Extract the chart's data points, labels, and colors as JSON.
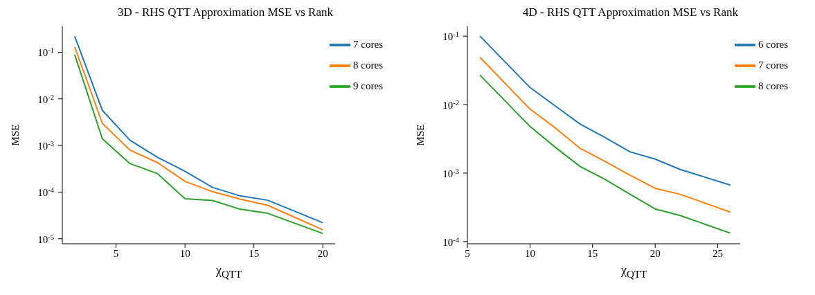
{
  "chart_data": [
    {
      "type": "line",
      "title": "3D - RHS QTT Approximation MSE vs Rank",
      "xlabel": "χ$_{QTT}$",
      "ylabel": "MSE",
      "log": "y",
      "grid": false,
      "legend": "top right",
      "x": [
        2,
        4,
        6,
        8,
        10,
        12,
        14,
        16,
        20
      ],
      "series": [
        {
          "name": "7 cores",
          "color": "#1f77b4",
          "values": [
            0.22,
            0.0057,
            0.0013,
            0.00056,
            0.00028,
            0.000126,
            8.3e-05,
            6.7e-05,
            2.2e-05
          ]
        },
        {
          "name": "8 cores",
          "color": "#ff7f0e",
          "values": [
            0.13,
            0.003,
            0.0008,
            0.00043,
            0.00017,
            0.000102,
            7.1e-05,
            5.2e-05,
            1.55e-05
          ]
        },
        {
          "name": "9 cores",
          "color": "#2ca02c",
          "values": [
            0.089,
            0.0014,
            0.00041,
            0.00025,
            7.2e-05,
            6.6e-05,
            4.3e-05,
            3.5e-05,
            1.3e-05
          ]
        }
      ],
      "xlim": [
        1.1,
        20.9
      ],
      "xticks": [
        5,
        10,
        15,
        20
      ],
      "ylim": [
        7.8e-06,
        0.36
      ],
      "yticks": [
        {
          "value": 0.1,
          "label": "10$^{-1}$"
        },
        {
          "value": 0.01,
          "label": "10$^{-2}$"
        },
        {
          "value": 0.001,
          "label": "10$^{-3}$"
        },
        {
          "value": 0.0001,
          "label": "10$^{-4}$"
        },
        {
          "value": 1e-05,
          "label": "10$^{-5}$"
        }
      ]
    },
    {
      "type": "line",
      "title": "4D - RHS QTT Approximation MSE vs Rank",
      "xlabel": "χ$_{QTT}$",
      "ylabel": "MSE",
      "log": "y",
      "grid": false,
      "legend": "top right",
      "x": [
        6,
        10,
        12,
        14,
        16,
        18,
        20,
        22,
        26
      ],
      "series": [
        {
          "name": "6 cores",
          "color": "#1f77b4",
          "values": [
            0.1,
            0.0178,
            0.0096,
            0.0052,
            0.0033,
            0.00204,
            0.0016,
            0.00113,
            0.00067
          ]
        },
        {
          "name": "7 cores",
          "color": "#ff7f0e",
          "values": [
            0.049,
            0.0086,
            0.0046,
            0.0023,
            0.00148,
            0.00093,
            0.0006,
            0.00049,
            0.00027
          ]
        },
        {
          "name": "8 cores",
          "color": "#2ca02c",
          "values": [
            0.027,
            0.0048,
            0.0024,
            0.00125,
            0.00081,
            0.00049,
            0.0003,
            0.00024,
            0.000133
          ]
        }
      ],
      "xlim": [
        5,
        26.8
      ],
      "xticks": [
        5,
        10,
        15,
        20,
        25
      ],
      "ylim": [
        9.3e-05,
        0.139
      ],
      "yticks": [
        {
          "value": 0.1,
          "label": "10$^{-1}$"
        },
        {
          "value": 0.01,
          "label": "10$^{-2}$"
        },
        {
          "value": 0.001,
          "label": "10$^{-3}$"
        },
        {
          "value": 0.0001,
          "label": "10$^{-4}$"
        }
      ]
    }
  ]
}
